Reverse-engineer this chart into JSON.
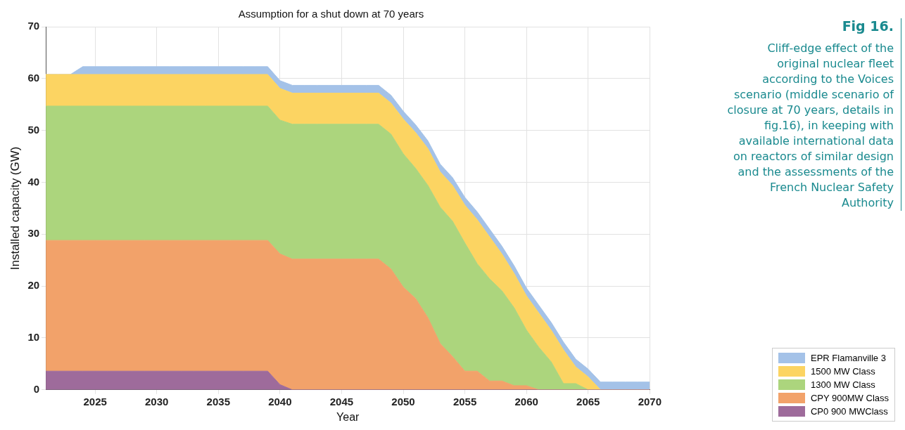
{
  "chart_data": {
    "type": "area",
    "stacked": true,
    "title": "Assumption for a shut down at 70 years",
    "xlabel": "Year",
    "ylabel": "Installed capacity (GW)",
    "x": [
      2021,
      2022,
      2023,
      2024,
      2025,
      2026,
      2027,
      2028,
      2029,
      2030,
      2031,
      2032,
      2033,
      2034,
      2035,
      2036,
      2037,
      2038,
      2039,
      2040,
      2041,
      2042,
      2043,
      2044,
      2045,
      2046,
      2047,
      2048,
      2049,
      2050,
      2051,
      2052,
      2053,
      2054,
      2055,
      2056,
      2057,
      2058,
      2059,
      2060,
      2061,
      2062,
      2063,
      2064,
      2065,
      2066,
      2067,
      2068,
      2069,
      2070
    ],
    "xlim": [
      2021,
      2070
    ],
    "xticks": [
      2025,
      2030,
      2035,
      2040,
      2045,
      2050,
      2055,
      2060,
      2065,
      2070
    ],
    "ylim": [
      0,
      70
    ],
    "yticks": [
      0,
      10,
      20,
      30,
      40,
      50,
      60,
      70
    ],
    "grid": true,
    "legend": "bottom right",
    "series": [
      {
        "name": "CP0 900 MWClass",
        "color": "#9e6b9b",
        "values": [
          3.6,
          3.6,
          3.6,
          3.6,
          3.6,
          3.6,
          3.6,
          3.6,
          3.6,
          3.6,
          3.6,
          3.6,
          3.6,
          3.6,
          3.6,
          3.6,
          3.6,
          3.6,
          3.6,
          1,
          0,
          0,
          0,
          0,
          0,
          0,
          0,
          0,
          0,
          0,
          0,
          0,
          0,
          0,
          0,
          0,
          0,
          0,
          0,
          0,
          0,
          0,
          0,
          0,
          0,
          0,
          0,
          0,
          0,
          0
        ]
      },
      {
        "name": "CPY 900MW Class",
        "color": "#f2a26a",
        "values": [
          25.2,
          25.2,
          25.2,
          25.2,
          25.2,
          25.2,
          25.2,
          25.2,
          25.2,
          25.2,
          25.2,
          25.2,
          25.2,
          25.2,
          25.2,
          25.2,
          25.2,
          25.2,
          25.2,
          25.2,
          25.2,
          25.2,
          25.2,
          25.2,
          25.2,
          25.2,
          25.2,
          25.2,
          23.3,
          19.8,
          17.6,
          13.9,
          8.9,
          6.4,
          3.6,
          3.6,
          1.7,
          1.7,
          0.8,
          0.8,
          0,
          0,
          0,
          0,
          0,
          0,
          0,
          0,
          0,
          0
        ]
      },
      {
        "name": "1300 MW Class",
        "color": "#acd57d",
        "values": [
          25.9,
          25.9,
          25.9,
          25.9,
          25.9,
          25.9,
          25.9,
          25.9,
          25.9,
          25.9,
          25.9,
          25.9,
          25.9,
          25.9,
          25.9,
          25.9,
          25.9,
          25.9,
          25.9,
          25.8,
          26,
          26,
          26,
          26,
          26,
          26,
          26,
          26,
          26,
          25.7,
          25.1,
          25.5,
          26.3,
          26.1,
          24.7,
          20.7,
          19.7,
          17.4,
          15,
          10.7,
          8.2,
          5.4,
          1.2,
          1.2,
          0,
          0,
          0,
          0,
          0,
          0
        ]
      },
      {
        "name": "1500 MW Class",
        "color": "#fcd462",
        "values": [
          6.1,
          6.1,
          6.1,
          6.1,
          6.1,
          6.1,
          6.1,
          6.1,
          6.1,
          6.1,
          6.1,
          6.1,
          6.1,
          6.1,
          6.1,
          6.1,
          6.1,
          6.1,
          6.1,
          6.1,
          6,
          6,
          6,
          6,
          6,
          6,
          6,
          6,
          6,
          6.7,
          6.9,
          7.1,
          6.8,
          6.9,
          7.3,
          8.5,
          8.1,
          7.1,
          6.6,
          6.6,
          6.6,
          6.1,
          6.5,
          3.2,
          2.5,
          0,
          0,
          0,
          0,
          0
        ]
      },
      {
        "name": "EPR Flamanville 3",
        "color": "#a4c2e8",
        "values": [
          0,
          0,
          0,
          1.5,
          1.5,
          1.5,
          1.5,
          1.5,
          1.5,
          1.5,
          1.5,
          1.5,
          1.5,
          1.5,
          1.5,
          1.5,
          1.5,
          1.5,
          1.5,
          1.5,
          1.5,
          1.5,
          1.5,
          1.5,
          1.5,
          1.5,
          1.5,
          1.5,
          1.5,
          1.5,
          1.5,
          1.5,
          1.5,
          1.5,
          1.5,
          1.5,
          1.5,
          1.5,
          1.5,
          1.5,
          1.5,
          1.5,
          1.5,
          1.5,
          1.5,
          1.5,
          1.5,
          1.5,
          1.5,
          1.5
        ]
      }
    ],
    "annotations": [
      "Fig 16.",
      "Cliff-edge effect of the original nuclear fleet according to the Voices scenario (middle scenario of closure at 70 years, details in fig.16), in keeping with available international data on reactors of similar design and the assessments of the French Nuclear Safety Authority"
    ]
  }
}
